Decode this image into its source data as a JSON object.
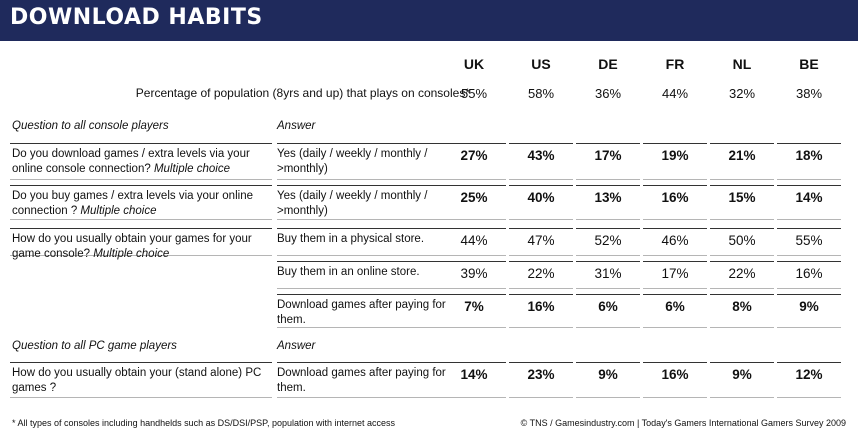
{
  "title": "DOWNLOAD HABITS",
  "chart_data": {
    "type": "table",
    "columns": [
      "UK",
      "US",
      "DE",
      "FR",
      "NL",
      "BE"
    ],
    "population_row": {
      "label": "Percentage of population (8yrs and up) that plays on consoles*",
      "values": [
        "55%",
        "58%",
        "36%",
        "44%",
        "32%",
        "38%"
      ]
    },
    "sections": [
      {
        "question_header": "Question to all console players",
        "answer_header": "Answer",
        "rows": [
          {
            "question": "Do you download games / extra levels via your online console connection?",
            "qualifier": "Multiple choice",
            "answer": "Yes (daily / weekly / monthly / >monthly)",
            "values": [
              "27%",
              "43%",
              "17%",
              "19%",
              "21%",
              "18%"
            ],
            "bold": true
          },
          {
            "question": "Do you buy games / extra levels via your online connection ?",
            "qualifier": "Multiple choice",
            "answer": "Yes (daily / weekly / monthly / >monthly)",
            "values": [
              "25%",
              "40%",
              "13%",
              "16%",
              "15%",
              "14%"
            ],
            "bold": true
          },
          {
            "question": "How do you usually obtain your games for your game console?",
            "qualifier": "Multiple choice",
            "answer": "Buy them in a physical store.",
            "values": [
              "44%",
              "47%",
              "52%",
              "46%",
              "50%",
              "55%"
            ],
            "bold": false
          },
          {
            "question": "",
            "qualifier": "",
            "answer": "Buy them in an online store.",
            "values": [
              "39%",
              "22%",
              "31%",
              "17%",
              "22%",
              "16%"
            ],
            "bold": false
          },
          {
            "question": "",
            "qualifier": "",
            "answer": "Download games after paying for them.",
            "values": [
              "7%",
              "16%",
              "6%",
              "6%",
              "8%",
              "9%"
            ],
            "bold": true
          }
        ]
      },
      {
        "question_header": "Question to all PC game players",
        "answer_header": "Answer",
        "rows": [
          {
            "question": "How do you usually obtain your (stand alone) PC games ?",
            "qualifier": "",
            "answer": "Download games after paying for them.",
            "values": [
              "14%",
              "23%",
              "9%",
              "16%",
              "9%",
              "12%"
            ],
            "bold": true
          }
        ]
      }
    ]
  },
  "footnote": "* All types of consoles including handhelds such as DS/DSI/PSP, population with internet access",
  "source": "© TNS / Gamesindustry.com | Today's Gamers International Gamers Survey 2009",
  "colors": {
    "banner": "#1f2a5c",
    "banner_text": "#ffffff"
  }
}
